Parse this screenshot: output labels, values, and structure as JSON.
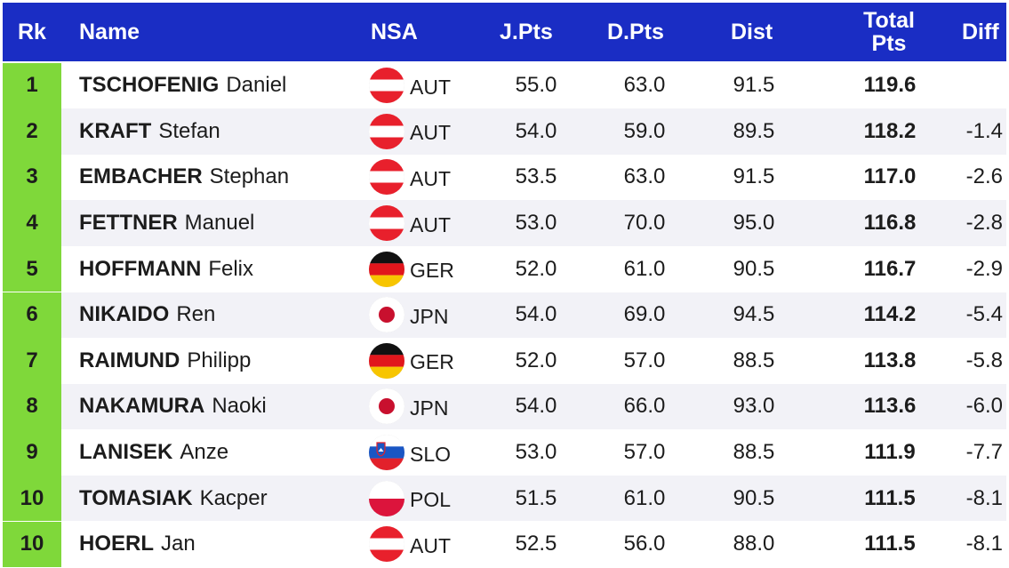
{
  "header": {
    "rank": "Rk",
    "name": "Name",
    "nsa": "NSA",
    "jpts": "J.Pts",
    "dpts": "D.Pts",
    "dist": "Dist",
    "total_line1": "Total",
    "total_line2": "Pts",
    "diff": "Diff"
  },
  "colors": {
    "header_bg": "#1a2dc4",
    "rank_bg": "#7fd83a",
    "row_alt_bg": "#f2f2f7"
  },
  "rows": [
    {
      "rank": "1",
      "last": "TSCHOFENIG",
      "first": "Daniel",
      "nsa": "AUT",
      "flag": "austria-flag-icon",
      "jpts": "55.0",
      "dpts": "63.0",
      "dist": "91.5",
      "total": "119.6",
      "diff": ""
    },
    {
      "rank": "2",
      "last": "KRAFT",
      "first": "Stefan",
      "nsa": "AUT",
      "flag": "austria-flag-icon",
      "jpts": "54.0",
      "dpts": "59.0",
      "dist": "89.5",
      "total": "118.2",
      "diff": "-1.4"
    },
    {
      "rank": "3",
      "last": "EMBACHER",
      "first": "Stephan",
      "nsa": "AUT",
      "flag": "austria-flag-icon",
      "jpts": "53.5",
      "dpts": "63.0",
      "dist": "91.5",
      "total": "117.0",
      "diff": "-2.6"
    },
    {
      "rank": "4",
      "last": "FETTNER",
      "first": "Manuel",
      "nsa": "AUT",
      "flag": "austria-flag-icon",
      "jpts": "53.0",
      "dpts": "70.0",
      "dist": "95.0",
      "total": "116.8",
      "diff": "-2.8"
    },
    {
      "rank": "5",
      "last": "HOFFMANN",
      "first": "Felix",
      "nsa": "GER",
      "flag": "germany-flag-icon",
      "jpts": "52.0",
      "dpts": "61.0",
      "dist": "90.5",
      "total": "116.7",
      "diff": "-2.9"
    },
    {
      "rank": "6",
      "last": "NIKAIDO",
      "first": "Ren",
      "nsa": "JPN",
      "flag": "japan-flag-icon",
      "jpts": "54.0",
      "dpts": "69.0",
      "dist": "94.5",
      "total": "114.2",
      "diff": "-5.4"
    },
    {
      "rank": "7",
      "last": "RAIMUND",
      "first": "Philipp",
      "nsa": "GER",
      "flag": "germany-flag-icon",
      "jpts": "52.0",
      "dpts": "57.0",
      "dist": "88.5",
      "total": "113.8",
      "diff": "-5.8"
    },
    {
      "rank": "8",
      "last": "NAKAMURA",
      "first": "Naoki",
      "nsa": "JPN",
      "flag": "japan-flag-icon",
      "jpts": "54.0",
      "dpts": "66.0",
      "dist": "93.0",
      "total": "113.6",
      "diff": "-6.0"
    },
    {
      "rank": "9",
      "last": "LANISEK",
      "first": "Anze",
      "nsa": "SLO",
      "flag": "slovenia-flag-icon",
      "jpts": "53.0",
      "dpts": "57.0",
      "dist": "88.5",
      "total": "111.9",
      "diff": "-7.7"
    },
    {
      "rank": "10",
      "last": "TOMASIAK",
      "first": "Kacper",
      "nsa": "POL",
      "flag": "poland-flag-icon",
      "jpts": "51.5",
      "dpts": "61.0",
      "dist": "90.5",
      "total": "111.5",
      "diff": "-8.1"
    },
    {
      "rank": "10",
      "last": "HOERL",
      "first": "Jan",
      "nsa": "AUT",
      "flag": "austria-flag-icon",
      "jpts": "52.5",
      "dpts": "56.0",
      "dist": "88.0",
      "total": "111.5",
      "diff": "-8.1"
    }
  ]
}
